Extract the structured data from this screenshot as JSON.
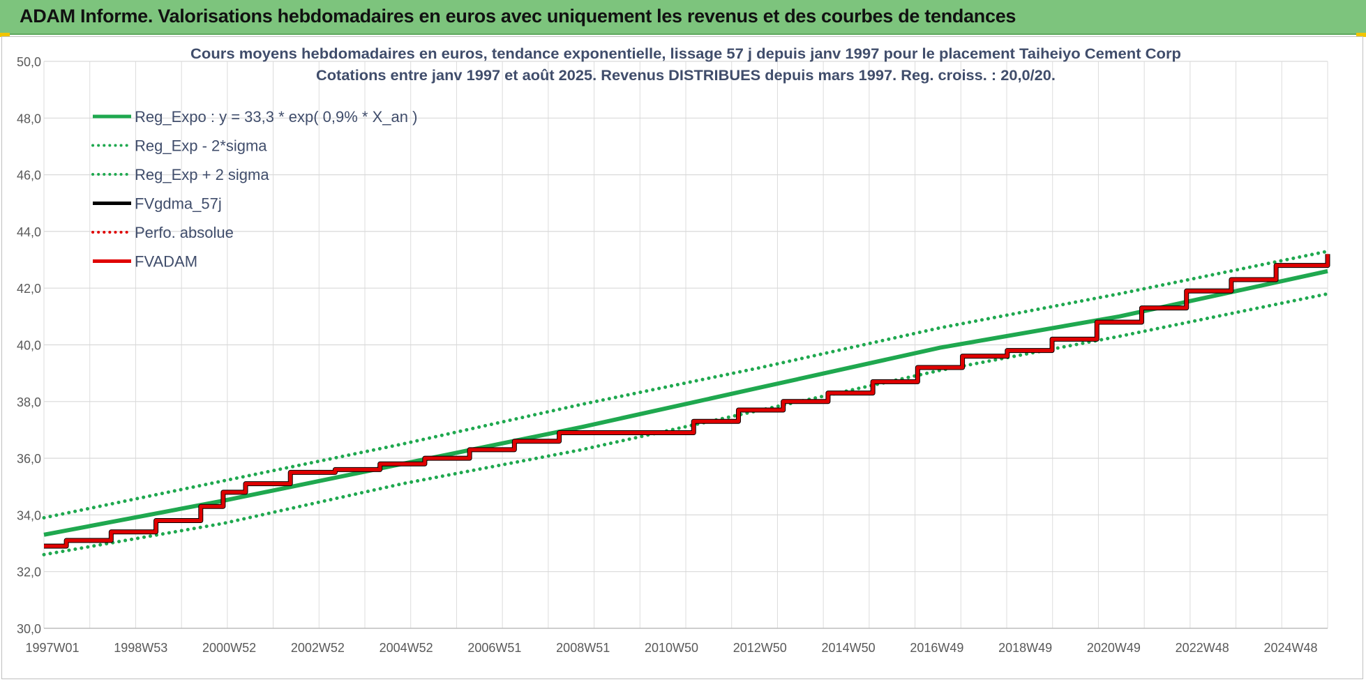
{
  "page": {
    "banner_title": "ADAM Informe. Valorisations hebdomadaires en euros avec uniquement les revenus et des courbes de tendances",
    "banner_color": "#7dc47d",
    "accent_color": "#f2c500"
  },
  "chart_data": {
    "type": "line",
    "title": "Cours moyens hebdomadaires en euros, tendance exponentielle, lissage 57 j depuis janv 1997 pour le placement Taiheiyo Cement Corp",
    "subtitle": "Cotations entre janv 1997 et août 2025. Revenus DISTRIBUES depuis mars 1997. Reg. croiss. : 20,0/20.",
    "xlabel": "",
    "ylabel": "",
    "x_tick_labels": [
      "1997W01",
      "1998W53",
      "2000W52",
      "2002W52",
      "2004W52",
      "2006W51",
      "2008W51",
      "2010W50",
      "2012W50",
      "2014W50",
      "2016W49",
      "2018W49",
      "2020W49",
      "2022W48",
      "2024W48"
    ],
    "xlim": [
      1997.0,
      2025.65
    ],
    "ylim": [
      30,
      50
    ],
    "y_tick_labels": [
      "30,0",
      "32,0",
      "34,0",
      "36,0",
      "38,0",
      "40,0",
      "42,0",
      "44,0",
      "46,0",
      "48,0",
      "50,0"
    ],
    "grid": true,
    "legend_position": "top-left",
    "legend": [
      {
        "label": "Reg_Expo : y = 33,3 * exp( 0,9% *  X_an )",
        "color": "#1fa84f",
        "style": "solid"
      },
      {
        "label": "Reg_Exp - 2*sigma",
        "color": "#1fa84f",
        "style": "dotted"
      },
      {
        "label": "Reg_Exp + 2 sigma",
        "color": "#1fa84f",
        "style": "dotted"
      },
      {
        "label": "FVgdma_57j",
        "color": "#000000",
        "style": "solid"
      },
      {
        "label": "Perfo. absolue",
        "color": "#e00000",
        "style": "dotted"
      },
      {
        "label": "FVADAM",
        "color": "#e00000",
        "style": "solid"
      }
    ],
    "series": [
      {
        "name": "Reg_Expo : y = 33,3 * exp( 0,9% *  X_an )",
        "x": [
          1997.0,
          2001.0,
          2005.0,
          2009.0,
          2013.0,
          2017.0,
          2021.0,
          2025.65
        ],
        "values": [
          33.3,
          34.5,
          35.8,
          37.1,
          38.5,
          39.9,
          41.0,
          42.6
        ]
      },
      {
        "name": "Reg_Exp - 2*sigma",
        "x": [
          1997.0,
          2001.0,
          2005.0,
          2009.0,
          2013.0,
          2017.0,
          2021.0,
          2025.65
        ],
        "values": [
          32.6,
          33.7,
          35.1,
          36.3,
          37.7,
          39.1,
          40.3,
          41.8
        ]
      },
      {
        "name": "Reg_Exp + 2 sigma",
        "x": [
          1997.0,
          2001.0,
          2005.0,
          2009.0,
          2013.0,
          2017.0,
          2021.0,
          2025.65
        ],
        "values": [
          33.9,
          35.2,
          36.5,
          37.9,
          39.2,
          40.6,
          41.8,
          43.3
        ]
      },
      {
        "name": "FVADAM",
        "x": [
          1997.0,
          1997.5,
          1998.5,
          1999.5,
          2000.5,
          2001.0,
          2001.5,
          2002.5,
          2003.5,
          2004.5,
          2005.5,
          2006.5,
          2007.5,
          2008.5,
          2009.5,
          2010.5,
          2011.5,
          2012.5,
          2013.5,
          2014.5,
          2015.5,
          2016.5,
          2017.5,
          2018.5,
          2019.5,
          2020.5,
          2021.5,
          2022.5,
          2023.5,
          2024.5,
          2025.65
        ],
        "values": [
          32.9,
          33.1,
          33.4,
          33.8,
          34.3,
          34.8,
          35.1,
          35.5,
          35.6,
          35.8,
          36.0,
          36.3,
          36.6,
          36.9,
          36.9,
          36.9,
          37.3,
          37.7,
          38.0,
          38.3,
          38.7,
          39.2,
          39.6,
          39.8,
          40.2,
          40.8,
          41.3,
          41.9,
          42.3,
          42.8,
          43.2
        ]
      }
    ]
  }
}
